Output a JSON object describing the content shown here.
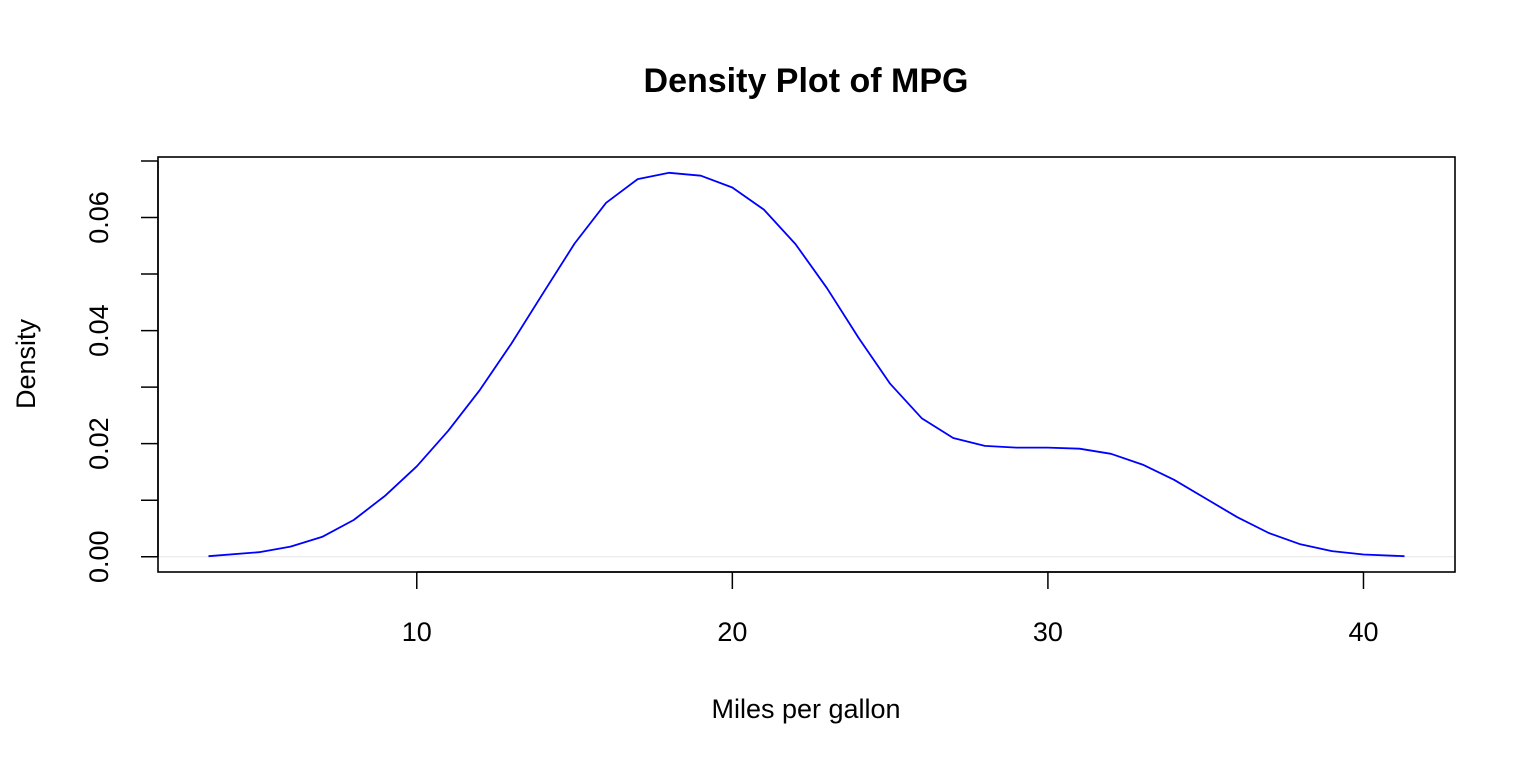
{
  "chart_data": {
    "type": "line",
    "title": "Density Plot of MPG",
    "xlabel": "Miles per gallon",
    "ylabel": "Density",
    "xlim": [
      1.8,
      42.9
    ],
    "ylim": [
      -0.0027,
      0.0707
    ],
    "xticks": [
      10,
      20,
      30,
      40
    ],
    "xtick_labels": [
      "10",
      "20",
      "30",
      "40"
    ],
    "yticks": [
      0,
      0.01,
      0.02,
      0.03,
      0.04,
      0.05,
      0.06,
      0.07
    ],
    "ytick_labels": [
      "0.00",
      "",
      "0.02",
      "",
      "0.04",
      "",
      "0.06",
      ""
    ],
    "grid": false,
    "legend": null,
    "baseline": 0,
    "series": [
      {
        "name": "density",
        "color": "#0000ff",
        "x": [
          3.4,
          5,
          6,
          7,
          8,
          9,
          10,
          11,
          12,
          13,
          14,
          15,
          16,
          17,
          18,
          19,
          20,
          21,
          22,
          23,
          24,
          25,
          26,
          27,
          28,
          29,
          30,
          31,
          32,
          33,
          34,
          35,
          36,
          37,
          38,
          39,
          40,
          41.3
        ],
        "values": [
          0.0001,
          0.0008,
          0.0018,
          0.0035,
          0.0065,
          0.0108,
          0.016,
          0.0223,
          0.0295,
          0.0377,
          0.0466,
          0.0554,
          0.0626,
          0.0668,
          0.0679,
          0.0674,
          0.0653,
          0.0614,
          0.0553,
          0.0475,
          0.0387,
          0.0306,
          0.0245,
          0.021,
          0.0196,
          0.0193,
          0.0193,
          0.0191,
          0.0182,
          0.0163,
          0.0136,
          0.0103,
          0.007,
          0.0042,
          0.0022,
          0.001,
          0.0004,
          0.0001
        ]
      }
    ]
  }
}
